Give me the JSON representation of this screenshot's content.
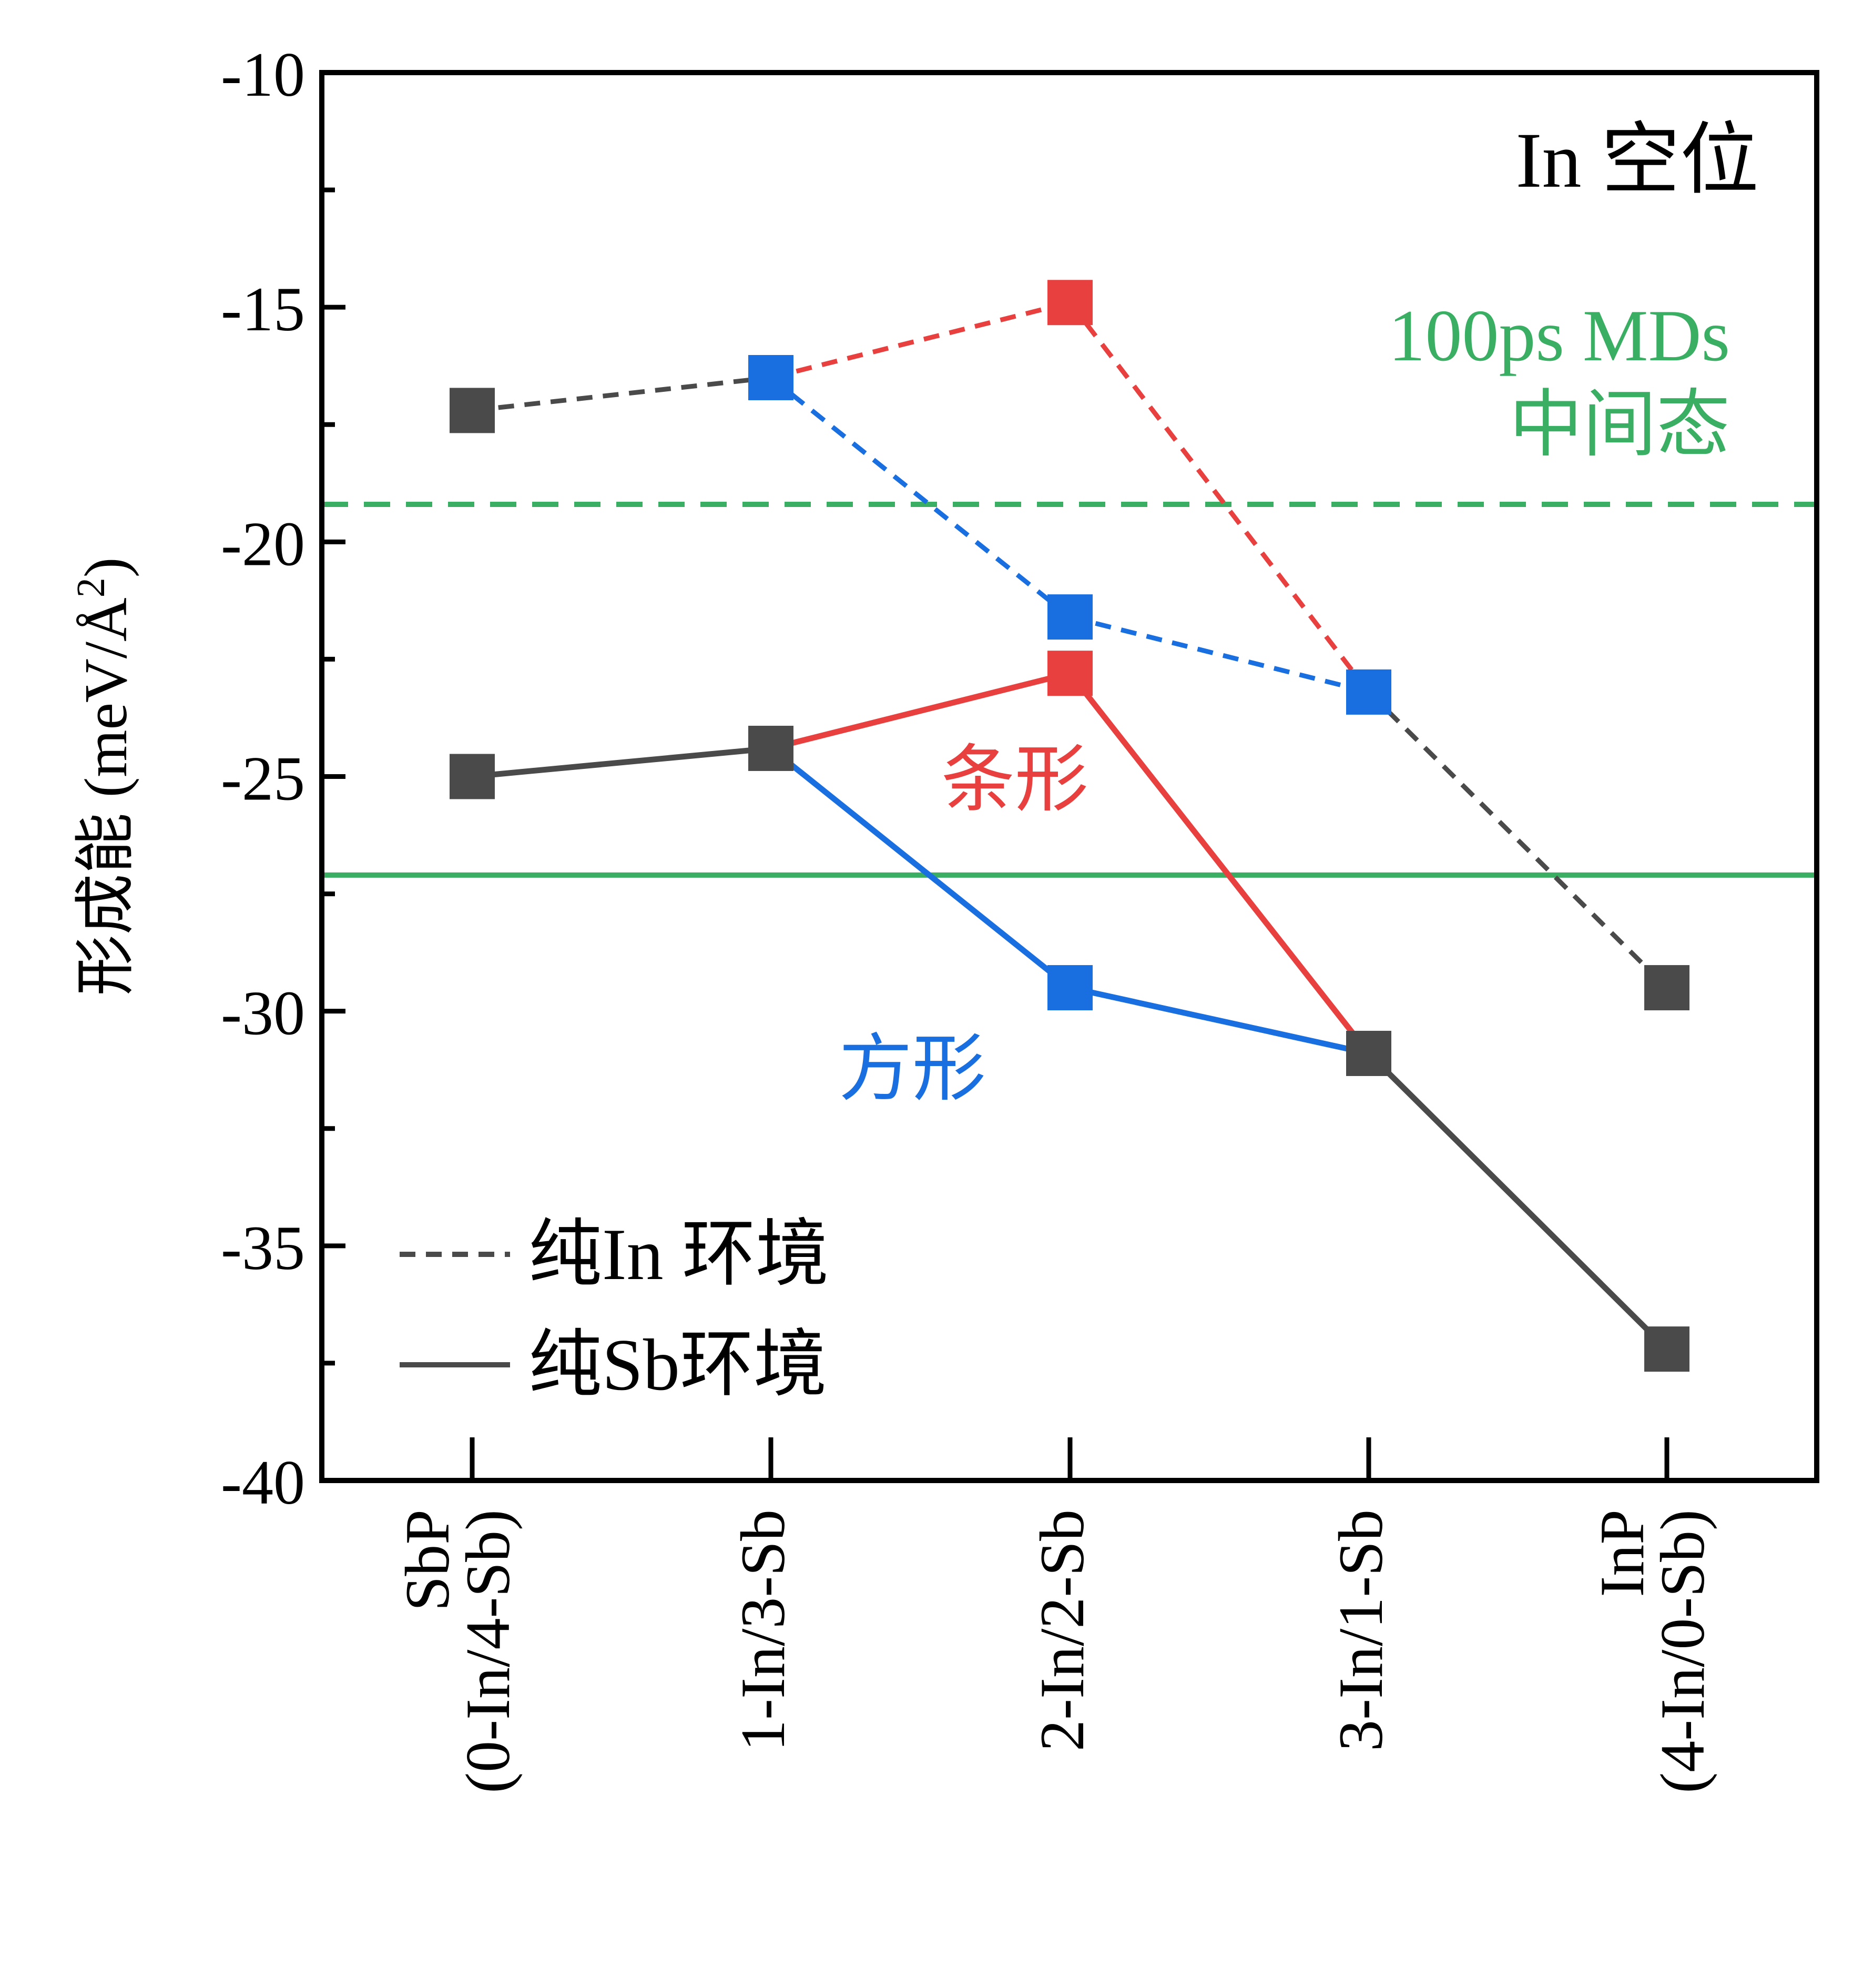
{
  "chart_data": {
    "type": "line",
    "title": "In 空位",
    "ylabel": "形成能 (meV/Å²)",
    "ylabel_main": "形成能 (meV/Å",
    "ylabel_sup": "2",
    "ylabel_close": ")",
    "ylim": [
      -40,
      -10
    ],
    "yticks": [
      -10,
      -15,
      -20,
      -25,
      -30,
      -35,
      -40
    ],
    "ytick_labels": [
      "-10",
      "-15",
      "-20",
      "-25",
      "-30",
      "-35",
      "-40"
    ],
    "y_minor_ticks": [
      -12.5,
      -17.5,
      -22.5,
      -27.5,
      -32.5,
      -37.5
    ],
    "categories": [
      {
        "line1": "SbP",
        "line2": "(0-In/4-Sb)"
      },
      {
        "line1": "1-In/3-Sb",
        "line2": ""
      },
      {
        "line1": "2-In/2-Sb",
        "line2": ""
      },
      {
        "line1": "3-In/1-Sb",
        "line2": ""
      },
      {
        "line1": "InP",
        "line2": "(4-In/0-Sb)"
      }
    ],
    "series": [
      {
        "name": "纯In 环境",
        "style": "dashed",
        "color": "#4a4a4a",
        "values": [
          -17.2,
          -16.5,
          -21.6,
          -23.2,
          -29.5
        ]
      },
      {
        "name": "纯Sb环境",
        "style": "solid",
        "color": "#4a4a4a",
        "values": [
          -25.0,
          -24.4,
          -29.5,
          -30.9,
          -37.2
        ]
      }
    ],
    "segments": [
      {
        "style": "dashed",
        "color": "#4a4a4a",
        "from": [
          0,
          -17.2
        ],
        "to": [
          1,
          -16.5
        ]
      },
      {
        "style": "dashed",
        "color": "#e8403f",
        "from": [
          1,
          -16.5
        ],
        "to": [
          2,
          -14.9
        ]
      },
      {
        "style": "dashed",
        "color": "#e8403f",
        "from": [
          2,
          -14.9
        ],
        "to": [
          3,
          -23.2
        ]
      },
      {
        "style": "dashed",
        "color": "#1a6fe0",
        "from": [
          1,
          -16.5
        ],
        "to": [
          2,
          -21.6
        ]
      },
      {
        "style": "dashed",
        "color": "#1a6fe0",
        "from": [
          2,
          -21.6
        ],
        "to": [
          3,
          -23.2
        ]
      },
      {
        "style": "dashed",
        "color": "#4a4a4a",
        "from": [
          3,
          -23.2
        ],
        "to": [
          4,
          -29.5
        ]
      },
      {
        "style": "solid",
        "color": "#4a4a4a",
        "from": [
          0,
          -25.0
        ],
        "to": [
          1,
          -24.4
        ]
      },
      {
        "style": "solid",
        "color": "#e8403f",
        "from": [
          1,
          -24.4
        ],
        "to": [
          2,
          -22.8
        ]
      },
      {
        "style": "solid",
        "color": "#e8403f",
        "from": [
          2,
          -22.8
        ],
        "to": [
          3,
          -30.9
        ]
      },
      {
        "style": "solid",
        "color": "#1a6fe0",
        "from": [
          1,
          -24.4
        ],
        "to": [
          2,
          -29.5
        ]
      },
      {
        "style": "solid",
        "color": "#1a6fe0",
        "from": [
          2,
          -29.5
        ],
        "to": [
          3,
          -30.9
        ]
      },
      {
        "style": "solid",
        "color": "#4a4a4a",
        "from": [
          3,
          -30.9
        ],
        "to": [
          4,
          -37.2
        ]
      }
    ],
    "markers": [
      {
        "x": 0,
        "y": -17.2,
        "color": "#4a4a4a"
      },
      {
        "x": 1,
        "y": -16.5,
        "color": "#1a6fe0"
      },
      {
        "x": 2,
        "y": -14.9,
        "color": "#e8403f"
      },
      {
        "x": 2,
        "y": -21.6,
        "color": "#1a6fe0"
      },
      {
        "x": 3,
        "y": -23.2,
        "color": "#1a6fe0"
      },
      {
        "x": 4,
        "y": -29.5,
        "color": "#4a4a4a"
      },
      {
        "x": 0,
        "y": -25.0,
        "color": "#4a4a4a"
      },
      {
        "x": 1,
        "y": -24.4,
        "color": "#4a4a4a"
      },
      {
        "x": 2,
        "y": -22.8,
        "color": "#e8403f"
      },
      {
        "x": 2,
        "y": -29.5,
        "color": "#1a6fe0"
      },
      {
        "x": 3,
        "y": -30.9,
        "color": "#4a4a4a"
      },
      {
        "x": 4,
        "y": -37.2,
        "color": "#4a4a4a"
      }
    ],
    "reference_lines": [
      {
        "y": -19.2,
        "style": "dashed",
        "color": "#3aae62"
      },
      {
        "y": -27.1,
        "style": "solid",
        "color": "#3aae62"
      }
    ],
    "annotations": {
      "md_line1": "100ps MDs",
      "md_line2": "中间态",
      "md_color": "#3aae62",
      "strip_label": "条形",
      "strip_color": "#e8403f",
      "square_label": "方形",
      "square_color": "#1a6fe0"
    },
    "legend": {
      "placement": "bottom-left",
      "entries": [
        {
          "label": "纯In 环境",
          "style": "dashed",
          "color": "#4a4a4a"
        },
        {
          "label": "纯Sb环境",
          "style": "solid",
          "color": "#4a4a4a"
        }
      ]
    },
    "grid": false
  }
}
